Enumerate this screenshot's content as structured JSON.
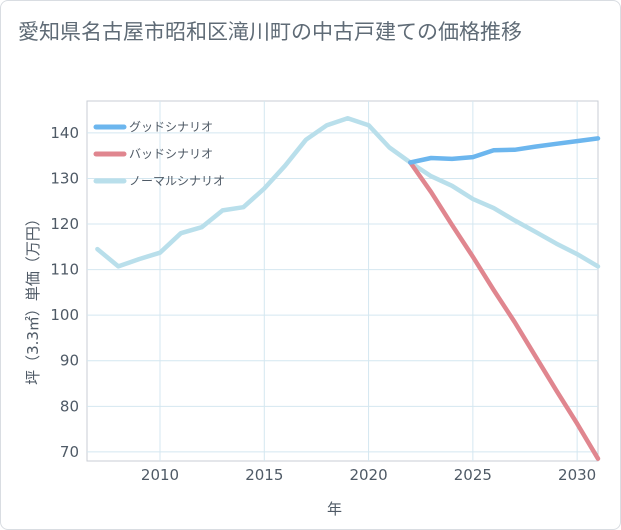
{
  "title": "愛知県名古屋市昭和区滝川町の中古戸建ての価格推移",
  "chart_data": {
    "type": "line",
    "title": "愛知県名古屋市昭和区滝川町の中古戸建ての価格推移",
    "xlabel": "年",
    "ylabel": "坪（3.3㎡）単価（万円）",
    "xlim": [
      2006.5,
      2031
    ],
    "ylim": [
      68,
      147
    ],
    "xticks": [
      2010,
      2015,
      2020,
      2025,
      2030
    ],
    "yticks": [
      70,
      80,
      90,
      100,
      110,
      120,
      130,
      140
    ],
    "grid": true,
    "legend_position": "top-left",
    "series": [
      {
        "name": "グッドシナリオ",
        "color": "#6cb6ee",
        "x": [
          2022,
          2023,
          2024,
          2025,
          2026,
          2027,
          2028,
          2029,
          2030,
          2031
        ],
        "y": [
          133.5,
          134.5,
          134.3,
          134.7,
          136.2,
          136.3,
          137.0,
          137.6,
          138.2,
          138.8
        ]
      },
      {
        "name": "バッドシナリオ",
        "color": "#e0868f",
        "x": [
          2022,
          2023,
          2024,
          2025,
          2026,
          2027,
          2028,
          2029,
          2030,
          2031
        ],
        "y": [
          133.5,
          127.0,
          119.8,
          112.8,
          105.5,
          98.5,
          91.0,
          83.5,
          76.2,
          68.5
        ]
      },
      {
        "name": "ノーマルシナリオ",
        "color": "#b9dfeb",
        "x": [
          2007,
          2008,
          2009,
          2010,
          2011,
          2012,
          2013,
          2014,
          2015,
          2016,
          2017,
          2018,
          2019,
          2020,
          2021,
          2022,
          2023,
          2024,
          2025,
          2026,
          2027,
          2028,
          2029,
          2030,
          2031
        ],
        "y": [
          114.5,
          110.7,
          112.3,
          113.7,
          118.0,
          119.3,
          123.0,
          123.7,
          127.8,
          132.8,
          138.5,
          141.7,
          143.2,
          141.7,
          136.8,
          133.5,
          130.5,
          128.4,
          125.5,
          123.5,
          120.8,
          118.3,
          115.7,
          113.4,
          110.7
        ]
      }
    ]
  }
}
